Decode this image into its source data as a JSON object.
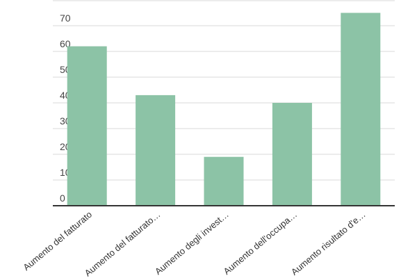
{
  "chart_data": {
    "type": "bar",
    "title": "",
    "xlabel": "",
    "ylabel": "",
    "categories": [
      "Aumento del fatturato",
      "Aumento del fatturato…",
      "Aumento degli invest…",
      "Aumento dell'occupa…",
      "Aumento risultato d'e…"
    ],
    "values": [
      62,
      43,
      19,
      40,
      75
    ],
    "ylim": [
      0,
      75
    ],
    "yticks": [
      0,
      10,
      20,
      30,
      40,
      50,
      60,
      70
    ],
    "grid": true,
    "legend": "none",
    "colors": {
      "bar": "#8cc3a6",
      "grid": "#d9d9d9",
      "axis": "#333333"
    }
  }
}
